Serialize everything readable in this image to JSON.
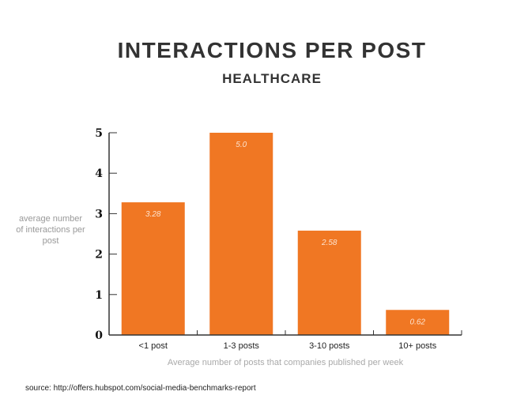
{
  "chart_data": {
    "type": "bar",
    "title": "INTERACTIONS PER POST",
    "subtitle": "HEALTHCARE",
    "categories": [
      "<1 post",
      "1-3 posts",
      "3-10 posts",
      "10+ posts"
    ],
    "values": [
      3.28,
      5.0,
      2.58,
      0.62
    ],
    "data_labels": [
      "3.28",
      "5.0",
      "2.58",
      "0.62"
    ],
    "xlabel": "Average number of posts that companies published per week",
    "ylabel": "average number of interactions per post",
    "ylim": [
      0,
      5
    ],
    "yticks": [
      0,
      1,
      2,
      3,
      4,
      5
    ],
    "grid": false,
    "bar_color": "#f07723",
    "source": "source: http://offers.hubspot.com/social-media-benchmarks-report"
  }
}
